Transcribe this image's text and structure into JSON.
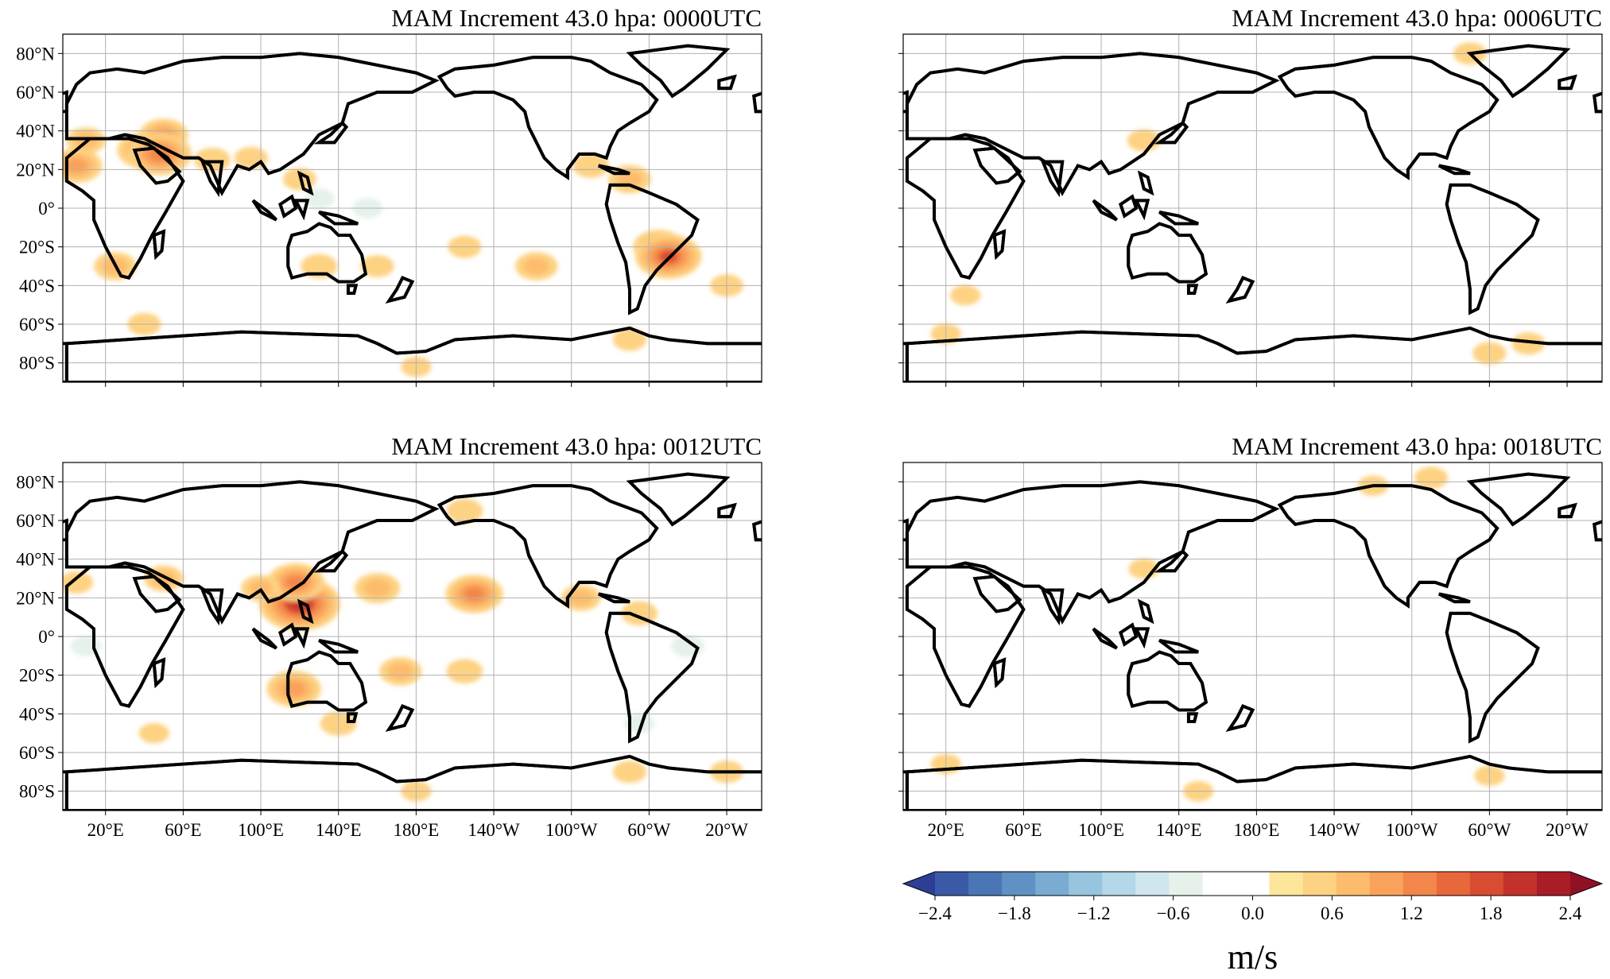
{
  "figure": {
    "panels": [
      {
        "id": "0000",
        "title": "MAM Increment 43.0 hpa: 0000UTC",
        "show_x_labels": false
      },
      {
        "id": "0006",
        "title": "MAM Increment 43.0 hpa: 0006UTC",
        "show_x_labels": false
      },
      {
        "id": "0012",
        "title": "MAM Increment 43.0 hpa: 0012UTC",
        "show_x_labels": true
      },
      {
        "id": "0018",
        "title": "MAM Increment 43.0 hpa: 0018UTC",
        "show_x_labels": true
      }
    ],
    "lat_ticks": [
      {
        "value": 80,
        "label": "80°N"
      },
      {
        "value": 60,
        "label": "60°N"
      },
      {
        "value": 40,
        "label": "40°N"
      },
      {
        "value": 20,
        "label": "20°N"
      },
      {
        "value": 0,
        "label": "0°"
      },
      {
        "value": -20,
        "label": "20°S"
      },
      {
        "value": -40,
        "label": "40°S"
      },
      {
        "value": -60,
        "label": "60°S"
      },
      {
        "value": -80,
        "label": "80°S"
      }
    ],
    "lon_ticks": [
      {
        "value": 20,
        "label": "20°E"
      },
      {
        "value": 60,
        "label": "60°E"
      },
      {
        "value": 100,
        "label": "100°E"
      },
      {
        "value": 140,
        "label": "140°E"
      },
      {
        "value": 180,
        "label": "180°E"
      },
      {
        "value": 220,
        "label": "140°W"
      },
      {
        "value": 260,
        "label": "100°W"
      },
      {
        "value": 300,
        "label": "60°W"
      },
      {
        "value": 340,
        "label": "20°W"
      }
    ],
    "map_extent": {
      "lon_min": 0,
      "lon_max": 360,
      "lat_min": -90,
      "lat_max": 90
    },
    "colorbar": {
      "unit": "m/s",
      "min": -2.4,
      "max": 2.4,
      "tick_values": [
        -2.4,
        -1.8,
        -1.2,
        -0.6,
        0.0,
        0.6,
        1.2,
        1.8,
        2.4
      ],
      "tick_labels": [
        "−2.4",
        "−1.8",
        "−1.2",
        "−0.6",
        "0.0",
        "0.6",
        "1.2",
        "1.8",
        "2.4"
      ],
      "colors": [
        "#2d3e94",
        "#3a5aa8",
        "#4a76b6",
        "#5f91c4",
        "#7aabd2",
        "#97c4df",
        "#b4d8e9",
        "#d0e6ee",
        "#e6f1ea",
        "#ffffff",
        "#ffffff",
        "#fde69a",
        "#fdd282",
        "#fdbc6d",
        "#f9a25b",
        "#f3864a",
        "#e8683c",
        "#d94c32",
        "#c3312a",
        "#a81d26",
        "#8f1224"
      ],
      "extend": "both"
    },
    "increment_blobs": {
      "0000": [
        {
          "lon": 40,
          "lat": 30,
          "value": 1.1
        },
        {
          "lon": 50,
          "lat": 38,
          "value": 0.9
        },
        {
          "lon": 48,
          "lat": 28,
          "value": 1.4
        },
        {
          "lon": 10,
          "lat": 35,
          "value": 0.6
        },
        {
          "lon": 5,
          "lat": 22,
          "value": 1.0
        },
        {
          "lon": 75,
          "lat": 25,
          "value": 0.5
        },
        {
          "lon": 95,
          "lat": 26,
          "value": 0.4
        },
        {
          "lon": 120,
          "lat": 15,
          "value": 0.4
        },
        {
          "lon": 25,
          "lat": -30,
          "value": 0.7
        },
        {
          "lon": 130,
          "lat": -30,
          "value": 0.5
        },
        {
          "lon": 160,
          "lat": -30,
          "value": 0.4
        },
        {
          "lon": 205,
          "lat": -20,
          "value": 0.4
        },
        {
          "lon": 242,
          "lat": -30,
          "value": 0.7
        },
        {
          "lon": 305,
          "lat": -20,
          "value": 1.0
        },
        {
          "lon": 310,
          "lat": -25,
          "value": 1.5
        },
        {
          "lon": 290,
          "lat": 15,
          "value": 0.7
        },
        {
          "lon": 270,
          "lat": 22,
          "value": 0.5
        },
        {
          "lon": 340,
          "lat": -40,
          "value": 0.4
        },
        {
          "lon": 40,
          "lat": -60,
          "value": 0.4
        },
        {
          "lon": 180,
          "lat": -82,
          "value": 0.3
        },
        {
          "lon": 290,
          "lat": -68,
          "value": 0.4
        },
        {
          "lon": 130,
          "lat": 5,
          "value": -0.3
        },
        {
          "lon": 155,
          "lat": 0,
          "value": -0.3
        },
        {
          "lon": 120,
          "lat": -20,
          "value": -0.2
        },
        {
          "lon": 160,
          "lat": -57,
          "value": -0.2
        }
      ],
      "0006": [
        {
          "lon": 290,
          "lat": 80,
          "value": 0.4
        },
        {
          "lon": 122,
          "lat": 35,
          "value": 0.4
        },
        {
          "lon": 30,
          "lat": -45,
          "value": 0.3
        },
        {
          "lon": 20,
          "lat": -65,
          "value": 0.3
        },
        {
          "lon": 320,
          "lat": -70,
          "value": 0.4
        },
        {
          "lon": 300,
          "lat": -75,
          "value": 0.4
        }
      ],
      "0012": [
        {
          "lon": 120,
          "lat": 17,
          "value": 2.0
        },
        {
          "lon": 118,
          "lat": 28,
          "value": 1.2
        },
        {
          "lon": 100,
          "lat": 25,
          "value": 0.6
        },
        {
          "lon": 160,
          "lat": 25,
          "value": 0.8
        },
        {
          "lon": 210,
          "lat": 22,
          "value": 1.2
        },
        {
          "lon": 205,
          "lat": 65,
          "value": 0.5
        },
        {
          "lon": 265,
          "lat": 20,
          "value": 0.6
        },
        {
          "lon": 295,
          "lat": 12,
          "value": 0.5
        },
        {
          "lon": 50,
          "lat": 30,
          "value": 0.6
        },
        {
          "lon": 5,
          "lat": 28,
          "value": 0.4
        },
        {
          "lon": 117,
          "lat": -27,
          "value": 1.1
        },
        {
          "lon": 140,
          "lat": -45,
          "value": 0.5
        },
        {
          "lon": 172,
          "lat": -18,
          "value": 0.7
        },
        {
          "lon": 205,
          "lat": -18,
          "value": 0.5
        },
        {
          "lon": 45,
          "lat": -50,
          "value": 0.3
        },
        {
          "lon": 290,
          "lat": -70,
          "value": 0.4
        },
        {
          "lon": 340,
          "lat": -70,
          "value": 0.4
        },
        {
          "lon": 180,
          "lat": -80,
          "value": 0.3
        },
        {
          "lon": 10,
          "lat": -5,
          "value": -0.3
        },
        {
          "lon": 320,
          "lat": -5,
          "value": -0.4
        },
        {
          "lon": 295,
          "lat": -45,
          "value": -0.3
        },
        {
          "lon": 118,
          "lat": 68,
          "value": -0.2
        }
      ],
      "0018": [
        {
          "lon": 270,
          "lat": 82,
          "value": 0.4
        },
        {
          "lon": 240,
          "lat": 78,
          "value": 0.3
        },
        {
          "lon": 122,
          "lat": 35,
          "value": 0.3
        },
        {
          "lon": 20,
          "lat": -66,
          "value": 0.3
        },
        {
          "lon": 150,
          "lat": -80,
          "value": 0.3
        },
        {
          "lon": 300,
          "lat": -72,
          "value": 0.3
        }
      ]
    }
  }
}
